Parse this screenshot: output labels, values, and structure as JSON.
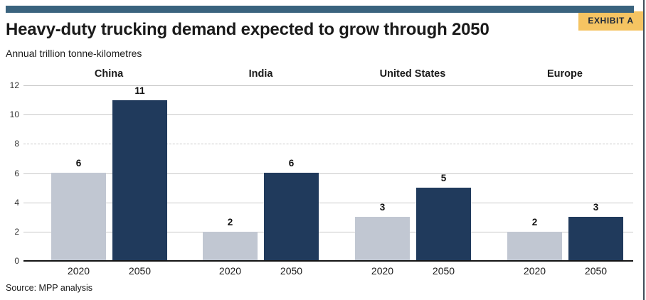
{
  "frame": {
    "badge": "EXHIBIT A"
  },
  "header": {
    "title": "Heavy-duty trucking demand expected to grow through 2050",
    "subtitle": "Annual trillion tonne-kilometres"
  },
  "footer": {
    "source": "Source: MPP analysis"
  },
  "colors": {
    "accent_strip": "#3A637E",
    "badge_bg": "#F5C462",
    "badge_text": "#1B2638",
    "bar_2020": "#C1C7D2",
    "bar_2050": "#203A5C",
    "gridline": "#C9C9C9",
    "baseline": "#141414",
    "frame_border": "#3F4E5A"
  },
  "chart_data": {
    "type": "bar",
    "title": "Heavy-duty trucking demand expected to grow through 2050",
    "ylabel": "Annual trillion tonne-kilometres",
    "categories": [
      "China",
      "India",
      "United States",
      "Europe"
    ],
    "x_tick_labels_per_group": [
      "2020",
      "2050"
    ],
    "series": [
      {
        "name": "2020",
        "values": [
          6,
          2,
          3,
          2
        ],
        "color": "#C1C7D2"
      },
      {
        "name": "2050",
        "values": [
          11,
          6,
          5,
          3
        ],
        "color": "#203A5C"
      }
    ],
    "ylim": [
      0,
      12
    ],
    "yticks": [
      0,
      2,
      4,
      6,
      8,
      10,
      12
    ],
    "grid": true,
    "dashed_gridlines": [
      8
    ],
    "legend": "none",
    "source": "Source: MPP analysis"
  }
}
